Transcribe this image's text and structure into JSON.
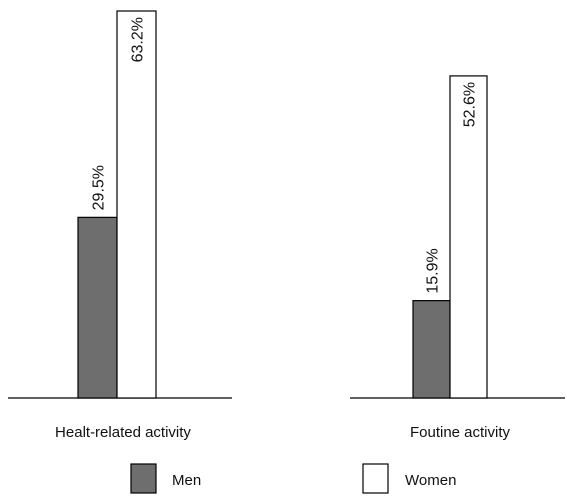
{
  "chart_data": {
    "type": "bar",
    "title": "",
    "xlabel": "",
    "ylabel": "",
    "ylim": [
      0,
      63.2
    ],
    "categories": [
      "Healt-related activity",
      "Foutine activity"
    ],
    "series": [
      {
        "name": "Men",
        "values": [
          29.5,
          15.9
        ],
        "value_labels": [
          "29.5%",
          "15.9%"
        ],
        "color": "#6e6e6e"
      },
      {
        "name": "Women",
        "values": [
          63.2,
          52.6
        ],
        "value_labels": [
          "63.2%",
          "52.6%"
        ],
        "color": "#ffffff"
      }
    ],
    "grid": false,
    "legend_position": "bottom"
  }
}
